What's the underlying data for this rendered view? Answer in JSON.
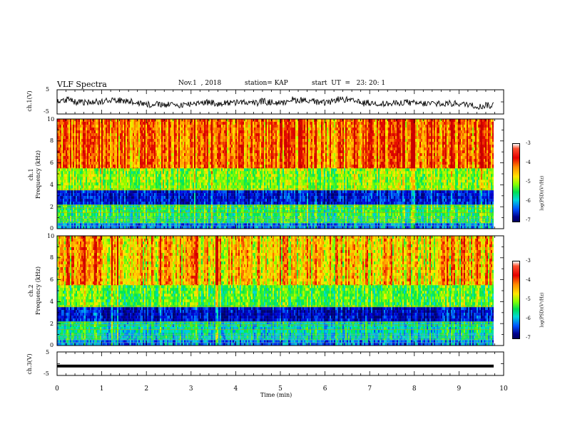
{
  "header": {
    "title": "VLF Spectra",
    "date": "Nov.1  , 2018",
    "station": "station= KAP",
    "start_ut": "start  UT  =   23: 20: 1"
  },
  "panels": {
    "ch1_wave": {
      "ylabel": "ch.1(V)",
      "ticks": [
        "5",
        "-5"
      ]
    },
    "ch1_spec": {
      "ylabel_line1": "ch.1",
      "ylabel_line2": "Frequency  (kHz)",
      "ticks": [
        "10",
        "8",
        "6",
        "4",
        "2",
        "0"
      ]
    },
    "ch2_spec": {
      "ylabel_line1": "ch.2",
      "ylabel_line2": "Frequency  (kHz)",
      "ticks": [
        "10",
        "8",
        "6",
        "4",
        "2",
        "0"
      ]
    },
    "ch3_wave": {
      "ylabel": "ch.3(V)",
      "ticks": [
        "5",
        "-5"
      ]
    }
  },
  "colorbar": {
    "label": "log(PSD)(V²/Hz)",
    "ticks": [
      "-3",
      "-4",
      "-5",
      "-6",
      "-7"
    ]
  },
  "xaxis": {
    "label": "Time  (min)",
    "ticks": [
      "0",
      "1",
      "2",
      "3",
      "4",
      "5",
      "6",
      "7",
      "8",
      "9",
      "10"
    ]
  },
  "colors": {
    "high": "#e60000",
    "mid": "#ffe600",
    "low": "#00e050",
    "floor": "#0000c8"
  },
  "chart_data": [
    {
      "type": "line",
      "title": "VLF Spectra",
      "ylabel": "ch.1(V)",
      "xlabel": "Time  (min)",
      "xlim": [
        0,
        10
      ],
      "ylim": [
        -5,
        5
      ],
      "series": [
        {
          "values_summary": "noisy waveform fluctuating roughly between -3 and 3 V, ending near 9.8 min"
        }
      ]
    },
    {
      "type": "heatmap",
      "ylabel": "Frequency  (kHz)",
      "xlim": [
        0,
        10
      ],
      "ylim": [
        0,
        10
      ],
      "zlim": [
        -7,
        -3
      ],
      "zlabel": "log(PSD)(V²/Hz)",
      "bands": [
        {
          "freq_khz": [
            0,
            0.5
          ],
          "level": -6
        },
        {
          "freq_khz": [
            0.5,
            2.2
          ],
          "level": -5.2
        },
        {
          "freq_khz": [
            2.2,
            3.5
          ],
          "level": -6.5
        },
        {
          "freq_khz": [
            3.5,
            5.5
          ],
          "level": -4.8
        },
        {
          "freq_khz": [
            5.5,
            10
          ],
          "level": -3.8
        }
      ]
    },
    {
      "type": "heatmap",
      "ylabel": "Frequency  (kHz)",
      "xlim": [
        0,
        10
      ],
      "ylim": [
        0,
        10
      ],
      "zlim": [
        -7,
        -3
      ],
      "zlabel": "log(PSD)(V²/Hz)",
      "bands": [
        {
          "freq_khz": [
            0,
            0.5
          ],
          "level": -6
        },
        {
          "freq_khz": [
            0.5,
            2.2
          ],
          "level": -5.5
        },
        {
          "freq_khz": [
            2.2,
            3.5
          ],
          "level": -6.6
        },
        {
          "freq_khz": [
            3.5,
            5.5
          ],
          "level": -5.0
        },
        {
          "freq_khz": [
            5.5,
            10
          ],
          "level": -4.2
        }
      ]
    },
    {
      "type": "line",
      "ylabel": "ch.3(V)",
      "xlim": [
        0,
        10
      ],
      "ylim": [
        -5,
        5
      ],
      "series": [
        {
          "values_summary": "flat line at about -1 V"
        }
      ],
      "level": -1
    }
  ]
}
